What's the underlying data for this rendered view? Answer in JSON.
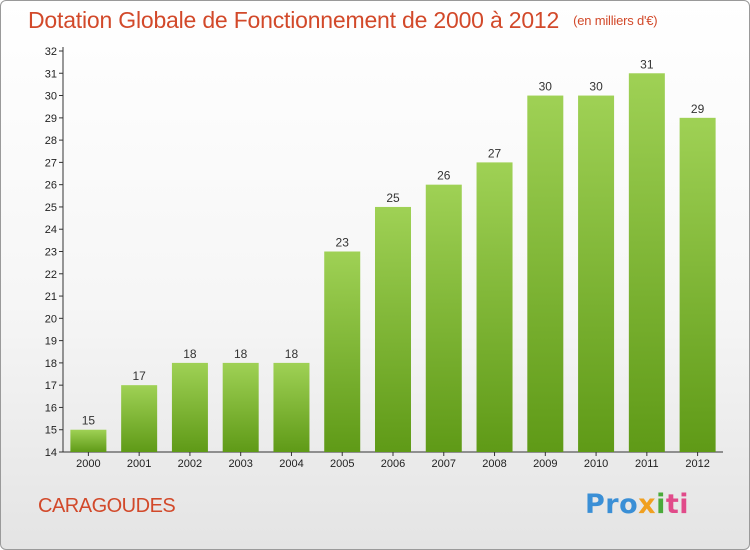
{
  "title": "Dotation Globale de Fonctionnement de 2000 à 2012",
  "subtitle": "(en milliers d'€)",
  "commune": "CARAGOUDES",
  "logo": {
    "parts": [
      "Pro",
      "x",
      "i",
      "ti"
    ]
  },
  "colors": {
    "bar_top": "#9fd155",
    "bar_bottom": "#5f9a17",
    "title": "#d2492a"
  },
  "chart_data": {
    "type": "bar",
    "title": "Dotation Globale de Fonctionnement de 2000 à 2012",
    "subtitle": "(en milliers d'€)",
    "categories": [
      "2000",
      "2001",
      "2002",
      "2003",
      "2004",
      "2005",
      "2006",
      "2007",
      "2008",
      "2009",
      "2010",
      "2011",
      "2012"
    ],
    "values": [
      15,
      17,
      18,
      18,
      18,
      23,
      25,
      26,
      27,
      30,
      30,
      31,
      29
    ],
    "ylim": [
      14,
      32
    ],
    "yticks": [
      14,
      15,
      16,
      17,
      18,
      19,
      20,
      21,
      22,
      23,
      24,
      25,
      26,
      27,
      28,
      29,
      30,
      31,
      32
    ],
    "grid": false,
    "data_labels": true
  }
}
